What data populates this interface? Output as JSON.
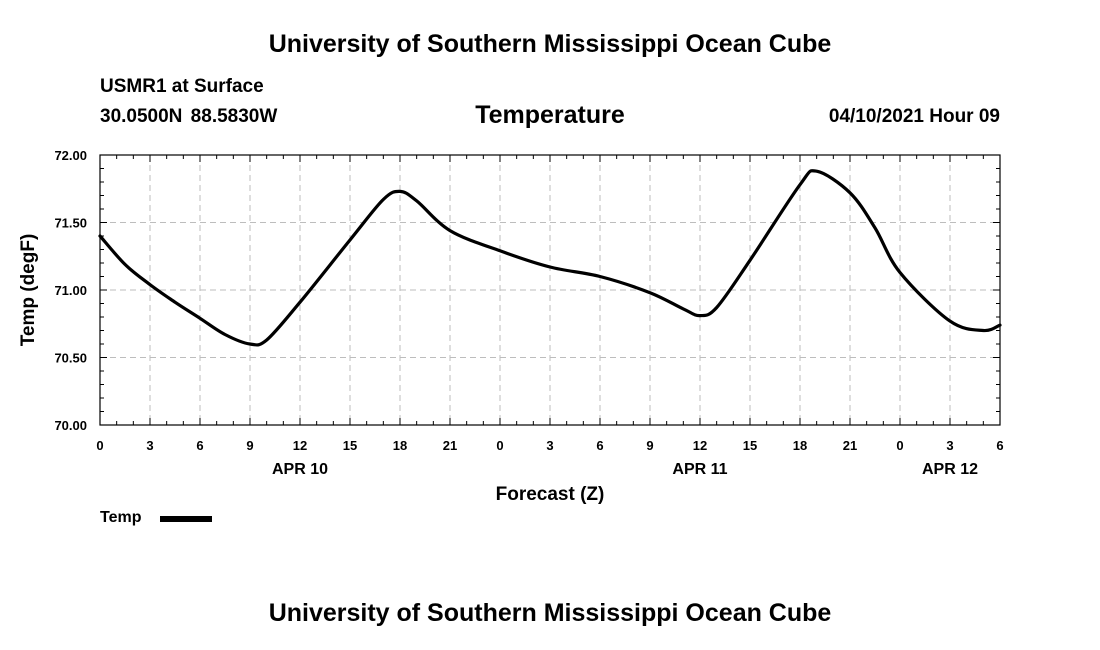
{
  "header": {
    "title": "University of Southern Mississippi Ocean Cube",
    "station": "USMR1 at Surface",
    "coords": "30.0500N  88.5830W",
    "variable": "Temperature",
    "datetime": "04/10/2021 Hour 09"
  },
  "footer": {
    "title": "University of Southern Mississippi Ocean Cube"
  },
  "legend": {
    "label": "Temp",
    "color": "#000000"
  },
  "chart_data": {
    "type": "line",
    "title": "Temperature",
    "xlabel": "Forecast (Z)",
    "ylabel": "Temp (degF)",
    "ylim": [
      70.0,
      72.0
    ],
    "xlim": [
      0,
      54
    ],
    "x_unit": "hours from APR 10 00Z",
    "yticks": [
      "70.00",
      "70.50",
      "71.00",
      "71.50",
      "72.00"
    ],
    "ytick_values": [
      70.0,
      70.5,
      71.0,
      71.5,
      72.0
    ],
    "xtick_values": [
      0,
      3,
      6,
      9,
      12,
      15,
      18,
      21,
      24,
      27,
      30,
      33,
      36,
      39,
      42,
      45,
      48,
      51,
      54
    ],
    "xticks": [
      "0",
      "3",
      "6",
      "9",
      "12",
      "15",
      "18",
      "21",
      "0",
      "3",
      "6",
      "9",
      "12",
      "15",
      "18",
      "21",
      "0",
      "3",
      "6"
    ],
    "date_labels": [
      {
        "label": "APR 10",
        "x": 12
      },
      {
        "label": "APR 11",
        "x": 36
      },
      {
        "label": "APR 12",
        "x": 51
      }
    ],
    "grid": true,
    "legend_position": "bottom-left",
    "series": [
      {
        "name": "Temp",
        "color": "#000000",
        "x": [
          0,
          1.5,
          3,
          4.5,
          6,
          7.5,
          9,
          10,
          12,
          15,
          17,
          18,
          19,
          21,
          24,
          27,
          30,
          33,
          35,
          36,
          37,
          39,
          42,
          43,
          45,
          46.5,
          48,
          51,
          53,
          54
        ],
        "values": [
          71.4,
          71.19,
          71.04,
          70.91,
          70.79,
          70.67,
          70.6,
          70.63,
          70.91,
          71.37,
          71.67,
          71.73,
          71.66,
          71.44,
          71.29,
          71.17,
          71.1,
          70.98,
          70.86,
          70.81,
          70.87,
          71.22,
          71.78,
          71.88,
          71.72,
          71.46,
          71.13,
          70.77,
          70.7,
          70.74
        ]
      }
    ]
  }
}
